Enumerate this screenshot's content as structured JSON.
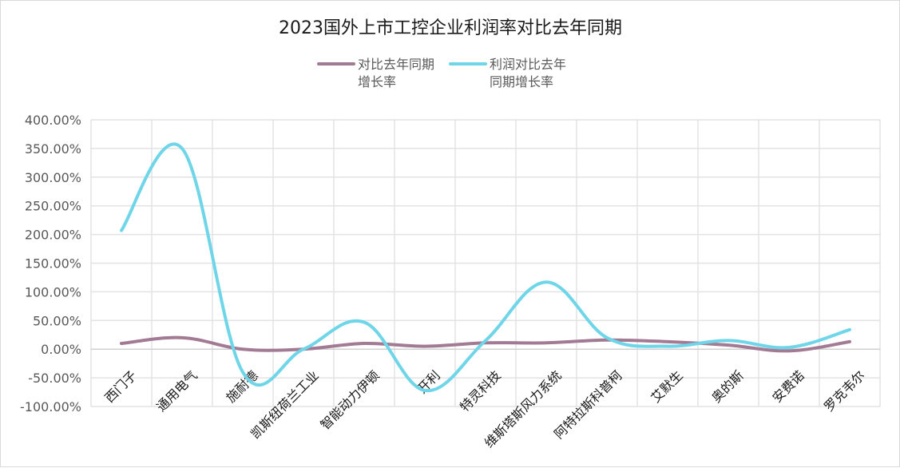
{
  "chart_data": {
    "type": "line",
    "title": "2023国外上市工控企业利润率对比去年同期",
    "categories": [
      "西门子",
      "通用电气",
      "施耐德",
      "凯斯纽荷兰工业",
      "智能动力伊顿",
      "开利",
      "特灵科技",
      "维斯塔斯风力系统",
      "阿特拉斯科普柯",
      "艾默生",
      "奥的斯",
      "安费诺",
      "罗克韦尔"
    ],
    "series": [
      {
        "name_lines": [
          "对比去年同期",
          "增长率"
        ],
        "color": "#a27a93",
        "values": [
          10,
          20,
          0,
          0,
          10,
          5,
          11,
          11,
          16,
          13,
          7,
          -3,
          13
        ]
      },
      {
        "name_lines": [
          "利润对比去年",
          "同期增长率"
        ],
        "color": "#6fd5e8",
        "values": [
          207,
          350,
          -40,
          0,
          47,
          -72,
          15,
          117,
          20,
          5,
          15,
          3,
          34
        ]
      }
    ],
    "ylim": [
      -100,
      400
    ],
    "yticks": [
      "400.00%",
      "350.00%",
      "300.00%",
      "250.00%",
      "200.00%",
      "150.00%",
      "100.00%",
      "50.00%",
      "0.00%",
      "-50.00%",
      "-100.00%"
    ],
    "legend_position": "top",
    "grid": true
  }
}
